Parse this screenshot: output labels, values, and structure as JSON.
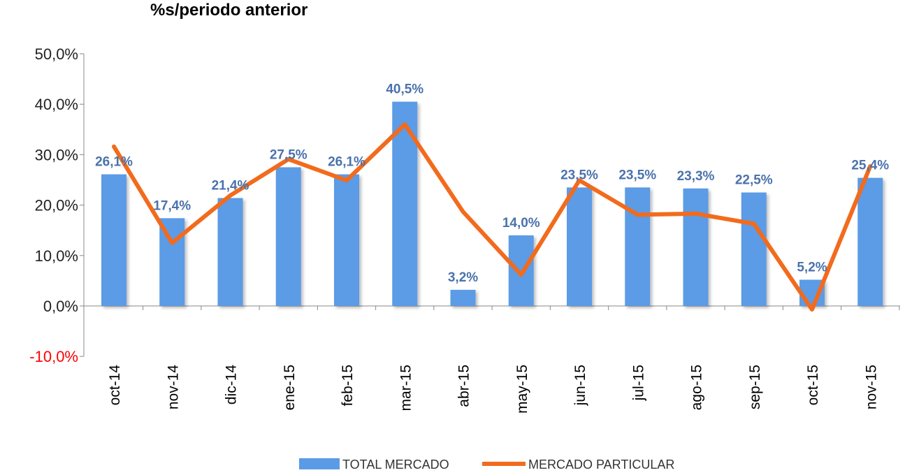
{
  "chart_data": {
    "type": "bar+line",
    "title": "%s/periodo anterior",
    "xlabel": "",
    "ylabel": "",
    "ylim": [
      -10,
      50
    ],
    "yticks": [
      "-10,0%",
      "0,0%",
      "10,0%",
      "20,0%",
      "30,0%",
      "40,0%",
      "50,0%"
    ],
    "ytick_values": [
      -10,
      0,
      10,
      20,
      30,
      40,
      50
    ],
    "negative_tick_color": "#ff0000",
    "grid": false,
    "legend_position": "bottom",
    "categories": [
      "oct-14",
      "nov-14",
      "dic-14",
      "ene-15",
      "feb-15",
      "mar-15",
      "abr-15",
      "may-15",
      "jun-15",
      "jul-15",
      "ago-15",
      "sep-15",
      "oct-15",
      "nov-15"
    ],
    "series": [
      {
        "name": "TOTAL MERCADO",
        "type": "bar",
        "color": "#5b9be6",
        "values": [
          26.1,
          17.4,
          21.4,
          27.5,
          26.1,
          40.5,
          3.2,
          14.0,
          23.5,
          23.5,
          23.3,
          22.5,
          5.2,
          25.4
        ],
        "labels": [
          "26,1%",
          "17,4%",
          "21,4%",
          "27,5%",
          "26,1%",
          "40,5%",
          "3,2%",
          "14,0%",
          "23,5%",
          "23,5%",
          "23,3%",
          "22,5%",
          "5,2%",
          "25,4%"
        ]
      },
      {
        "name": "MERCADO PARTICULAR",
        "type": "line",
        "color": "#f26b1d",
        "values": [
          31.6,
          12.5,
          21.9,
          29.1,
          24.9,
          36.0,
          18.7,
          6.2,
          24.9,
          18.1,
          18.3,
          16.3,
          -0.7,
          27.7
        ]
      }
    ]
  }
}
